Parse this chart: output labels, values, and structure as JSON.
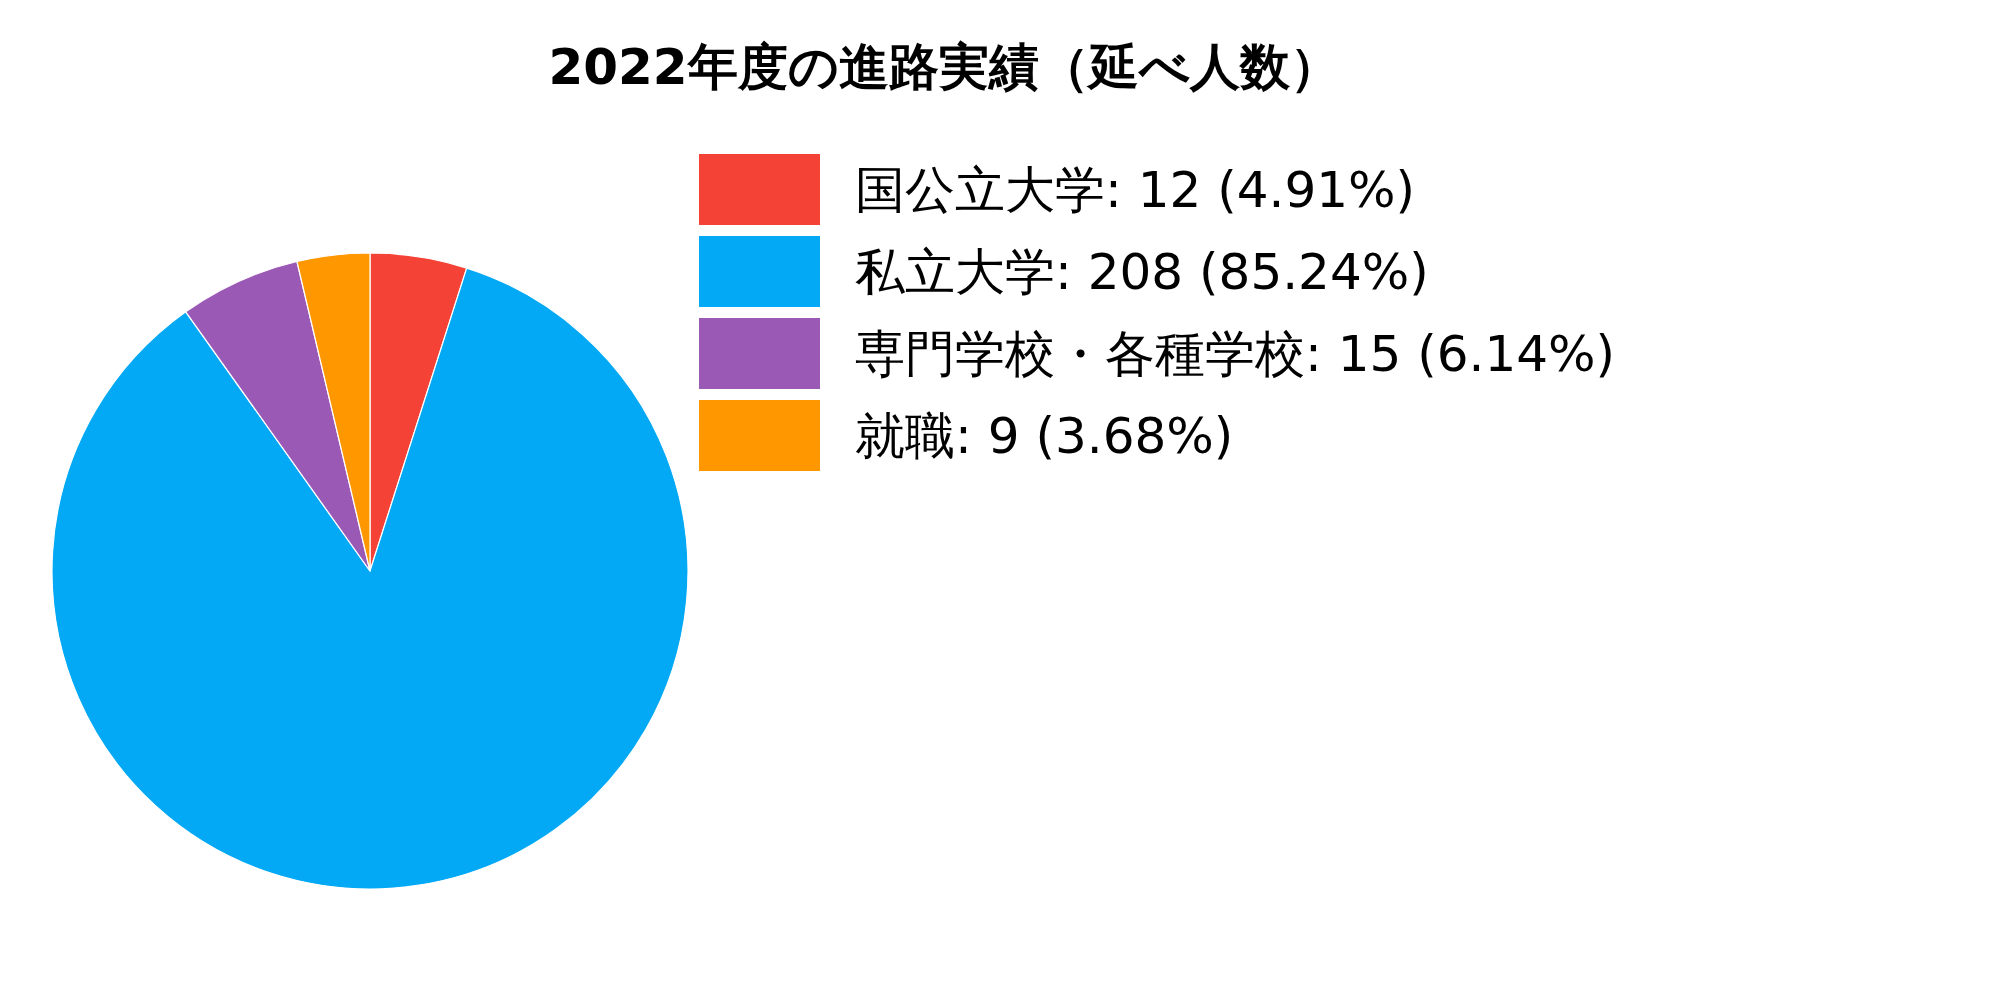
{
  "chart_data": {
    "type": "pie",
    "title": "2022年度の進路実績（延べ人数）",
    "categories": [
      "国公立大学",
      "私立大学",
      "専門学校・各種学校",
      "就職"
    ],
    "values": [
      12,
      208,
      15,
      9
    ],
    "value_labels": [
      "12 (4.91%)",
      "208 (85.24%)",
      "15 (6.14%)",
      "9 (3.68%)"
    ],
    "colors": [
      "#f44336",
      "#03a9f4",
      "#9b59b6",
      "#ff9800"
    ],
    "legend": "right"
  }
}
